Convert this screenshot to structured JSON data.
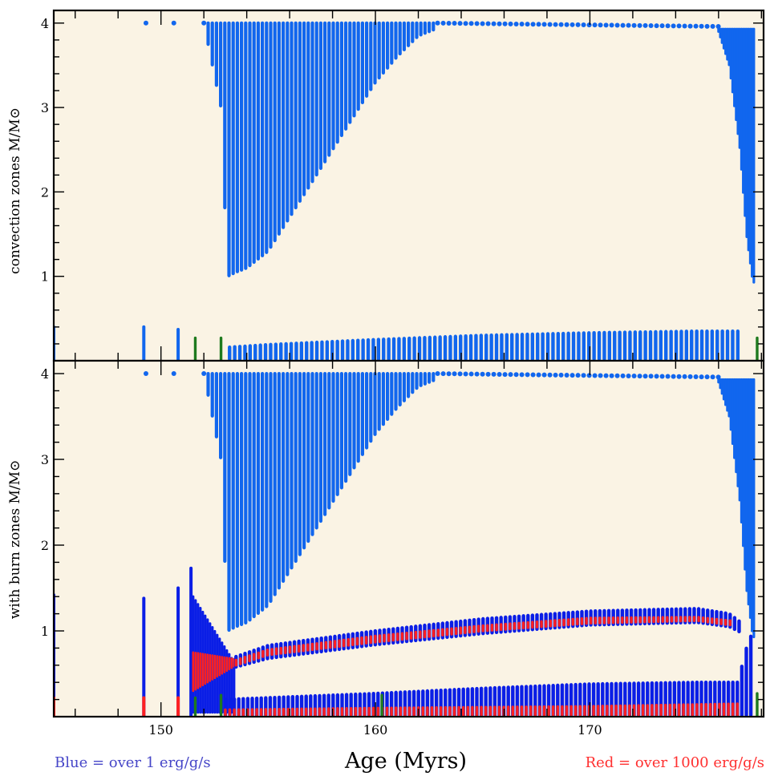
{
  "colors": {
    "background": "#faf3e4",
    "convection": "#1166ee",
    "burn_blue": "#0a1ee6",
    "burn_red": "#ff2020",
    "green": "#1e7a1e",
    "note_blue": "#4646c8",
    "note_red": "#ff3030"
  },
  "xlabel": "Age (Myrs)",
  "legend_notes": {
    "blue": "Blue = over 1 erg/g/s",
    "red": "Red = over 1000 erg/g/s"
  },
  "chart_data": [
    {
      "type": "scatter",
      "panel": "top",
      "ylabel": "convection zones M/M⊙",
      "xlim": [
        145,
        178.1
      ],
      "ylim": [
        0,
        4.15
      ],
      "x_ticks": [
        "150",
        "160",
        "170"
      ],
      "y_ticks": [
        "1",
        "2",
        "3",
        "4"
      ],
      "series": [
        {
          "role": "envelope convective zone (bottom edge)",
          "x": [
            149.3,
            150.6,
            152.0,
            152.8,
            153.1,
            153.5,
            154.0,
            154.5,
            155.0,
            156.0,
            157.0,
            158.0,
            159.0,
            160.0,
            161.0,
            162.0,
            163.0,
            165.0,
            170.0,
            175.0,
            176.0,
            176.5,
            177.0,
            177.3,
            177.6
          ],
          "y": [
            4.0,
            4.0,
            4.0,
            3.0,
            1.0,
            1.05,
            1.1,
            1.2,
            1.3,
            1.7,
            2.1,
            2.5,
            2.9,
            3.3,
            3.6,
            3.85,
            3.95,
            3.96,
            3.94,
            3.93,
            3.9,
            3.5,
            2.5,
            1.5,
            0.93
          ],
          "top": 4.0
        },
        {
          "role": "core convective zone (top edge)",
          "x": [
            145.0,
            149.2,
            150.8,
            152.9,
            153.2,
            155.0,
            160.0,
            165.0,
            170.0,
            175.0,
            176.9
          ],
          "y": [
            0.4,
            0.4,
            0.37,
            0.2,
            0.16,
            0.19,
            0.25,
            0.3,
            0.33,
            0.35,
            0.35
          ]
        },
        {
          "role": "green markers",
          "x": [
            151.6,
            152.8,
            177.8
          ],
          "y": [
            0.27,
            0.27,
            0.27
          ]
        }
      ]
    },
    {
      "type": "scatter",
      "panel": "bottom",
      "ylabel": "with burn zones M/M⊙",
      "xlim": [
        145,
        178.1
      ],
      "ylim": [
        0,
        4.15
      ],
      "x_ticks": [
        "150",
        "160",
        "170"
      ],
      "y_ticks": [
        "1",
        "2",
        "3",
        "4"
      ],
      "series": [
        {
          "role": "envelope convective zone (bottom edge)",
          "x": [
            149.3,
            150.6,
            152.0,
            152.8,
            153.1,
            153.5,
            154.0,
            154.5,
            155.0,
            156.0,
            157.0,
            158.0,
            159.0,
            160.0,
            161.0,
            162.0,
            163.0,
            165.0,
            170.0,
            175.0,
            176.0,
            176.5,
            177.0,
            177.3,
            177.6
          ],
          "y": [
            4.0,
            4.0,
            4.0,
            3.0,
            1.0,
            1.05,
            1.1,
            1.2,
            1.3,
            1.7,
            2.1,
            2.5,
            2.9,
            3.3,
            3.6,
            3.85,
            3.95,
            3.96,
            3.94,
            3.93,
            3.9,
            3.5,
            2.5,
            1.5,
            0.93
          ],
          "top": 4.0
        },
        {
          "role": "shell burning band (blue, >1 erg/g/s)",
          "x": [
            153.5,
            155.0,
            160.0,
            165.0,
            170.0,
            175.0,
            176.5,
            177.3
          ],
          "y_low": [
            0.58,
            0.68,
            0.84,
            0.97,
            1.07,
            1.1,
            1.05,
            0.95
          ],
          "y_high": [
            0.7,
            0.83,
            1.0,
            1.14,
            1.23,
            1.26,
            1.2,
            1.05
          ]
        },
        {
          "role": "shell burning band (red, >1000 erg/g/s)",
          "x": [
            153.5,
            155.0,
            160.0,
            165.0,
            170.0,
            175.0,
            176.5
          ],
          "y_low": [
            0.6,
            0.72,
            0.87,
            1.0,
            1.09,
            1.12,
            1.07
          ],
          "y_high": [
            0.66,
            0.78,
            0.94,
            1.06,
            1.15,
            1.16,
            1.12
          ]
        },
        {
          "role": "core burning zone top (blue)",
          "x": [
            153.0,
            155.0,
            160.0,
            165.0,
            170.0,
            175.0,
            176.9,
            177.3,
            177.6
          ],
          "y": [
            0.2,
            0.22,
            0.27,
            0.33,
            0.38,
            0.4,
            0.4,
            0.8,
            1.0
          ]
        },
        {
          "role": "core burning zone top (red)",
          "x": [
            153.0,
            160.0,
            170.0,
            176.9
          ],
          "y": [
            0.08,
            0.1,
            0.12,
            0.15
          ]
        },
        {
          "role": "early flash spikes",
          "x": [
            145.0,
            149.2,
            150.8,
            151.4
          ],
          "y": [
            1.42,
            1.38,
            1.5,
            1.73
          ],
          "red_top": 0.22
        },
        {
          "role": "green markers",
          "x": [
            151.6,
            152.8,
            160.3,
            177.8
          ],
          "y": [
            0.22,
            0.25,
            0.25,
            0.27
          ]
        }
      ]
    }
  ]
}
